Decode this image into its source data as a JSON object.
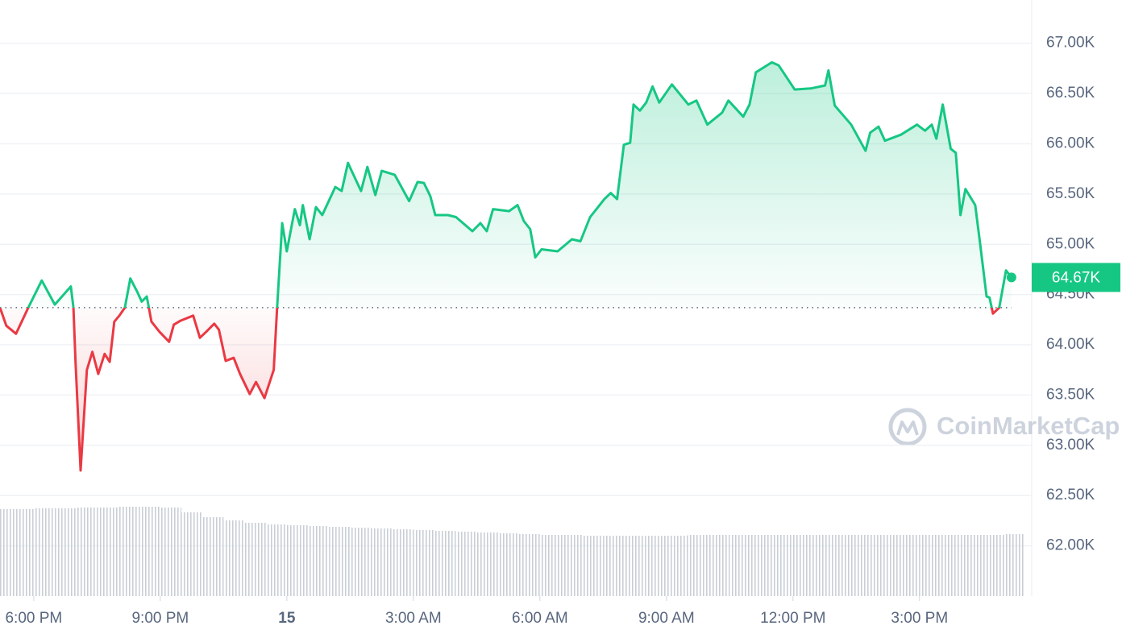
{
  "chart_data": {
    "type": "line",
    "watermark": "CoinMarketCap",
    "color_up": "#16c784",
    "color_down": "#ea3943",
    "baseline": 64370,
    "grid": true,
    "xlim": [
      17.2,
      41.66
    ],
    "ylim": [
      61500,
      67430
    ],
    "xticks": [
      {
        "value": 18,
        "label": "6:00 PM"
      },
      {
        "value": 21,
        "label": "9:00 PM"
      },
      {
        "value": 24,
        "label": "15"
      },
      {
        "value": 27,
        "label": "3:00 AM"
      },
      {
        "value": 30,
        "label": "6:00 AM"
      },
      {
        "value": 33,
        "label": "9:00 AM"
      },
      {
        "value": 36,
        "label": "12:00 PM"
      },
      {
        "value": 39,
        "label": "3:00 PM"
      }
    ],
    "yticks": [
      {
        "value": 62000,
        "label": "62.00K"
      },
      {
        "value": 62500,
        "label": "62.50K"
      },
      {
        "value": 63000,
        "label": "63.00K"
      },
      {
        "value": 63500,
        "label": "63.50K"
      },
      {
        "value": 64000,
        "label": "64.00K"
      },
      {
        "value": 64500,
        "label": "64.50K"
      },
      {
        "value": 65000,
        "label": "65.00K"
      },
      {
        "value": 65500,
        "label": "65.50K"
      },
      {
        "value": 66000,
        "label": "66.00K"
      },
      {
        "value": 66500,
        "label": "66.50K"
      },
      {
        "value": 67000,
        "label": "67.00K"
      }
    ],
    "current": {
      "value": 64670,
      "label": "64.67K"
    },
    "x": [
      17.2,
      17.35,
      17.58,
      17.87,
      18.19,
      18.5,
      18.88,
      18.94,
      18.99,
      19.11,
      19.26,
      19.39,
      19.53,
      19.68,
      19.8,
      19.91,
      20.03,
      20.16,
      20.29,
      20.45,
      20.56,
      20.68,
      20.79,
      20.98,
      21.21,
      21.32,
      21.48,
      21.78,
      21.94,
      22.09,
      22.28,
      22.39,
      22.55,
      22.74,
      22.89,
      23.12,
      23.27,
      23.47,
      23.69,
      23.77,
      23.89,
      24.0,
      24.19,
      24.31,
      24.38,
      24.54,
      24.69,
      24.84,
      25.15,
      25.3,
      25.45,
      25.76,
      25.91,
      26.1,
      26.25,
      26.56,
      26.9,
      27.1,
      27.25,
      27.4,
      27.52,
      27.82,
      28.01,
      28.4,
      28.59,
      28.74,
      28.89,
      29.27,
      29.47,
      29.62,
      29.77,
      29.89,
      30.04,
      30.42,
      30.76,
      30.96,
      31.19,
      31.53,
      31.68,
      31.83,
      31.99,
      32.14,
      32.22,
      32.37,
      32.52,
      32.67,
      32.83,
      33.13,
      33.52,
      33.71,
      33.97,
      34.32,
      34.47,
      34.82,
      34.97,
      35.12,
      35.5,
      35.66,
      36.04,
      36.42,
      36.76,
      36.84,
      36.99,
      37.38,
      37.72,
      37.83,
      38.03,
      38.18,
      38.56,
      38.94,
      39.13,
      39.29,
      39.4,
      39.55,
      39.74,
      39.86,
      39.97,
      40.09,
      40.32,
      40.43,
      40.59,
      40.66,
      40.74,
      40.89,
      41.05,
      41.18
    ],
    "values": [
      64370,
      64190,
      64110,
      64370,
      64640,
      64400,
      64580,
      64370,
      63830,
      62750,
      63750,
      63930,
      63710,
      63910,
      63830,
      64230,
      64290,
      64370,
      64660,
      64530,
      64430,
      64480,
      64230,
      64130,
      64030,
      64200,
      64240,
      64290,
      64070,
      64130,
      64210,
      64150,
      63840,
      63870,
      63710,
      63510,
      63630,
      63470,
      63750,
      64370,
      65210,
      64930,
      65350,
      65190,
      65390,
      65050,
      65370,
      65290,
      65570,
      65530,
      65810,
      65530,
      65770,
      65490,
      65730,
      65690,
      65430,
      65620,
      65610,
      65480,
      65290,
      65290,
      65270,
      65130,
      65210,
      65130,
      65350,
      65330,
      65390,
      65230,
      65150,
      64870,
      64950,
      64930,
      65050,
      65030,
      65270,
      65450,
      65510,
      65450,
      65990,
      66010,
      66390,
      66330,
      66410,
      66570,
      66410,
      66590,
      66390,
      66430,
      66190,
      66310,
      66430,
      66270,
      66390,
      66710,
      66810,
      66780,
      66540,
      66550,
      66580,
      66730,
      66380,
      66190,
      65930,
      66110,
      66170,
      66030,
      66090,
      66190,
      66130,
      66190,
      66050,
      66390,
      65950,
      65910,
      65290,
      65550,
      65390,
      65030,
      64480,
      64470,
      64310,
      64370,
      64740,
      64670
    ],
    "volume": {
      "x": [
        17.25,
        17.75,
        18.25,
        18.75,
        19.25,
        19.75,
        20.25,
        20.75,
        21.25,
        21.75,
        22.25,
        22.75,
        23.25,
        23.75,
        24.25,
        24.75,
        25.25,
        25.75,
        26.25,
        26.75,
        27.25,
        27.75,
        28.25,
        28.75,
        29.25,
        29.75,
        30.25,
        30.75,
        31.25,
        31.75,
        32.25,
        32.75,
        33.25,
        33.75,
        34.25,
        34.75,
        35.25,
        35.75,
        36.25,
        36.75,
        37.25,
        37.75,
        38.25,
        38.75,
        39.25,
        39.75,
        40.25,
        40.75,
        41.25
      ],
      "values": [
        108,
        108,
        109,
        109,
        110,
        110,
        111,
        111,
        110,
        104,
        98,
        94,
        91,
        89,
        88,
        87,
        86,
        85,
        84,
        83,
        82,
        81,
        80,
        79,
        78,
        77,
        76,
        76,
        75,
        75,
        75,
        75,
        75,
        76,
        76,
        76,
        76,
        76,
        76,
        76,
        76,
        76,
        76,
        76,
        76,
        76,
        76,
        76,
        77
      ]
    }
  }
}
